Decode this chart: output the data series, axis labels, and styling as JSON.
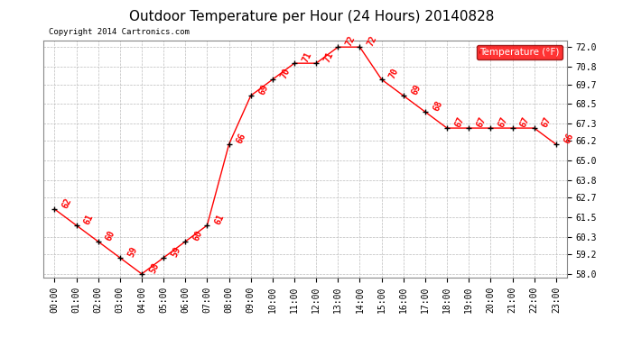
{
  "title": "Outdoor Temperature per Hour (24 Hours) 20140828",
  "copyright": "Copyright 2014 Cartronics.com",
  "legend_label": "Temperature (°F)",
  "hours": [
    "00:00",
    "01:00",
    "02:00",
    "03:00",
    "04:00",
    "05:00",
    "06:00",
    "07:00",
    "08:00",
    "09:00",
    "10:00",
    "11:00",
    "12:00",
    "13:00",
    "14:00",
    "15:00",
    "16:00",
    "17:00",
    "18:00",
    "19:00",
    "20:00",
    "21:00",
    "22:00",
    "23:00"
  ],
  "temps": [
    62,
    61,
    60,
    59,
    58,
    59,
    60,
    61,
    66,
    69,
    70,
    71,
    71,
    72,
    72,
    70,
    69,
    68,
    67,
    67,
    67,
    67,
    67,
    66
  ],
  "ylim": [
    57.8,
    72.4
  ],
  "yticks": [
    58.0,
    59.2,
    60.3,
    61.5,
    62.7,
    63.8,
    65.0,
    66.2,
    67.3,
    68.5,
    69.7,
    70.8,
    72.0
  ],
  "line_color": "red",
  "marker_color": "black",
  "label_color": "red",
  "bg_color": "white",
  "grid_color": "#bbbbbb",
  "title_fontsize": 11,
  "label_fontsize": 7,
  "tick_fontsize": 7,
  "legend_bg": "red",
  "legend_fg": "white"
}
